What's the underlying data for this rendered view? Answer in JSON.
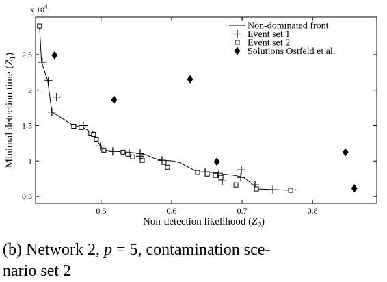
{
  "chart_data": {
    "type": "scatter",
    "x_label": [
      "Non-detection likelihood (",
      "Z",
      "2",
      ")"
    ],
    "y_label": [
      "Minimal detection time (",
      "Z",
      "1",
      ")"
    ],
    "exponent_label": [
      "x 10",
      "4"
    ],
    "caption": [
      [
        "(b) Network 2, ",
        "p",
        " = 5, contamination sce-"
      ],
      [
        "nario set 2"
      ]
    ],
    "xlim": [
      0.407,
      0.891
    ],
    "ylim": [
      0.404,
      3.03
    ],
    "xticks": [
      0.5,
      0.6,
      0.7,
      0.8
    ],
    "yticks": [
      0.5,
      1,
      1.5,
      2,
      2.5
    ],
    "legend": "upper right",
    "series": [
      {
        "name": "Non-dominated front",
        "marker": "line",
        "color": "#000000",
        "x": [
          0.4126,
          0.4155,
          0.4243,
          0.4301,
          0.4612,
          0.4748,
          0.4893,
          0.4932,
          0.499,
          0.5039,
          0.5233,
          0.5485,
          0.5641,
          0.5748,
          0.5864,
          0.6019,
          0.6107,
          0.6369,
          0.6631,
          0.6718,
          0.6893,
          0.6981,
          0.7039,
          0.7155,
          0.7214,
          0.7689,
          0.7767
        ],
        "values": [
          2.904,
          2.394,
          2.134,
          1.692,
          1.5,
          1.471,
          1.385,
          1.308,
          1.212,
          1.154,
          1.135,
          1.115,
          1.087,
          1.038,
          1.01,
          1.0,
          0.981,
          0.846,
          0.837,
          0.817,
          0.798,
          0.779,
          0.76,
          0.663,
          0.606,
          0.587,
          0.596
        ]
      },
      {
        "name": "Event set 1",
        "marker": "plus",
        "color": "#000000",
        "x": [
          0.4165,
          0.4252,
          0.4369,
          0.4301,
          0.4748,
          0.499,
          0.5165,
          0.5398,
          0.5553,
          0.5553,
          0.5864,
          0.6476,
          0.667,
          0.6718,
          0.6981,
          0.699,
          0.7184,
          0.7437
        ],
        "values": [
          2.394,
          2.134,
          1.904,
          1.692,
          1.5,
          1.212,
          1.135,
          1.115,
          1.106,
          1.067,
          1.01,
          0.846,
          0.817,
          0.721,
          0.769,
          0.875,
          0.663,
          0.596
        ]
      },
      {
        "name": "Event set 2",
        "marker": "square",
        "color": "#000000",
        "x": [
          0.4126,
          0.4612,
          0.4718,
          0.4854,
          0.4893,
          0.4932,
          0.5039,
          0.5311,
          0.5379,
          0.5447,
          0.5583,
          0.5893,
          0.5942,
          0.6369,
          0.6505,
          0.6621,
          0.6689,
          0.6699,
          0.6913,
          0.7204,
          0.7689
        ],
        "values": [
          2.904,
          1.49,
          1.471,
          1.394,
          1.375,
          1.308,
          1.154,
          1.125,
          1.096,
          1.058,
          1.01,
          0.981,
          0.913,
          0.837,
          0.817,
          0.798,
          0.798,
          0.769,
          0.663,
          0.606,
          0.587
        ]
      },
      {
        "name": "Solutions Ostfeld et al.",
        "marker": "diamond",
        "color": "#000000",
        "x": [
          0.434,
          0.5184,
          0.6262,
          0.6641,
          0.8466,
          0.8592
        ],
        "values": [
          2.49,
          1.865,
          2.154,
          0.99,
          1.125,
          0.615
        ]
      }
    ]
  }
}
